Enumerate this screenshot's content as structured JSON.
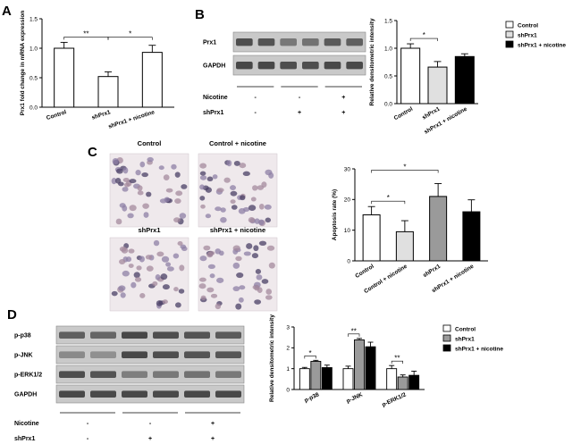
{
  "panels": {
    "A": "A",
    "B": "B",
    "C": "C",
    "D": "D"
  },
  "chart_data": [
    {
      "id": "A",
      "type": "bar",
      "categories": [
        "Control",
        "shPrx1",
        "shPrx1 + nicotine"
      ],
      "values": [
        1.0,
        0.52,
        0.93
      ],
      "errors": [
        0.1,
        0.08,
        0.12
      ],
      "colors": [
        "#ffffff",
        "#ffffff",
        "#ffffff"
      ],
      "ylabel": "Prx1 fold change in mRNA expression",
      "ylim": [
        0,
        1.5
      ],
      "yticks": [
        "0.0",
        "0.5",
        "1.0",
        "1.5"
      ],
      "significance": [
        {
          "from": 0,
          "to": 1,
          "label": "**"
        },
        {
          "from": 1,
          "to": 2,
          "label": "*"
        }
      ]
    },
    {
      "id": "B",
      "type": "bar",
      "categories": [
        "Control",
        "shPrx1",
        "shPrx1 + nicotine"
      ],
      "values": [
        1.0,
        0.66,
        0.85
      ],
      "errors": [
        0.08,
        0.1,
        0.05
      ],
      "colors": [
        "#ffffff",
        "#e0e0e0",
        "#000000"
      ],
      "ylabel": "Relative densitometric intensity",
      "ylim": [
        0,
        1.5
      ],
      "yticks": [
        "0.0",
        "0.5",
        "1.0",
        "1.5"
      ],
      "legend": [
        "Control",
        "shPrx1",
        "shPrx1 + nicotine"
      ],
      "significance": [
        {
          "from": 0,
          "to": 1,
          "label": "*"
        }
      ]
    },
    {
      "id": "C",
      "type": "bar",
      "categories": [
        "Control",
        "Control + nicotine",
        "shPrx1",
        "shPrx1 + nicotine"
      ],
      "values": [
        15,
        9.5,
        21,
        16
      ],
      "errors": [
        2.7,
        3.6,
        4.2,
        3.9
      ],
      "colors": [
        "#ffffff",
        "#e0e0e0",
        "#9a9a9a",
        "#000000"
      ],
      "ylabel": "Apoptosis rate (%)",
      "ylim": [
        0,
        30
      ],
      "yticks": [
        "0",
        "10",
        "20",
        "30"
      ],
      "significance": [
        {
          "from": 0,
          "to": 1,
          "label": "*"
        },
        {
          "from": 0,
          "to": 2,
          "label": "*"
        }
      ]
    },
    {
      "id": "D",
      "type": "bar",
      "categories": [
        "p-p38",
        "p-JNK",
        "p-ERK1/2"
      ],
      "series": [
        {
          "name": "Control",
          "values": [
            1.0,
            1.0,
            1.0
          ],
          "errors": [
            0.06,
            0.12,
            0.15
          ],
          "color": "#ffffff"
        },
        {
          "name": "shPrx1",
          "values": [
            1.35,
            2.38,
            0.6
          ],
          "errors": [
            0.05,
            0.07,
            0.1
          ],
          "color": "#9a9a9a"
        },
        {
          "name": "shPrx1 + nicotine",
          "values": [
            1.05,
            2.05,
            0.68
          ],
          "errors": [
            0.12,
            0.22,
            0.2
          ],
          "color": "#000000"
        }
      ],
      "ylabel": "Relative densitometric intensity",
      "ylim": [
        0,
        3
      ],
      "yticks": [
        "0",
        "1",
        "2",
        "3"
      ],
      "legend": [
        "Control",
        "shPrx1",
        "shPrx1 + nicotine"
      ],
      "significance": [
        {
          "group": 0,
          "from": 0,
          "to": 1,
          "label": "*"
        },
        {
          "group": 1,
          "from": 0,
          "to": 1,
          "label": "**"
        },
        {
          "group": 2,
          "from": 0,
          "to": 1,
          "label": "**"
        }
      ]
    }
  ],
  "blot_B": {
    "rows": [
      "Prx1",
      "GAPDH"
    ],
    "treatments": [
      {
        "label": "Nicotine",
        "signs": [
          "-",
          "-",
          "+"
        ]
      },
      {
        "label": "shPrx1",
        "signs": [
          "-",
          "+",
          "+"
        ]
      }
    ]
  },
  "blot_D": {
    "rows": [
      "p-p38",
      "p-JNK",
      "p-ERK1/2",
      "GAPDH"
    ],
    "treatments": [
      {
        "label": "Nicotine",
        "signs": [
          "-",
          "-",
          "+"
        ]
      },
      {
        "label": "shPrx1",
        "signs": [
          "-",
          "+",
          "+"
        ]
      }
    ]
  },
  "micrographs": [
    "Control",
    "Control + nicotine",
    "shPrx1",
    "shPrx1 + nicotine"
  ]
}
